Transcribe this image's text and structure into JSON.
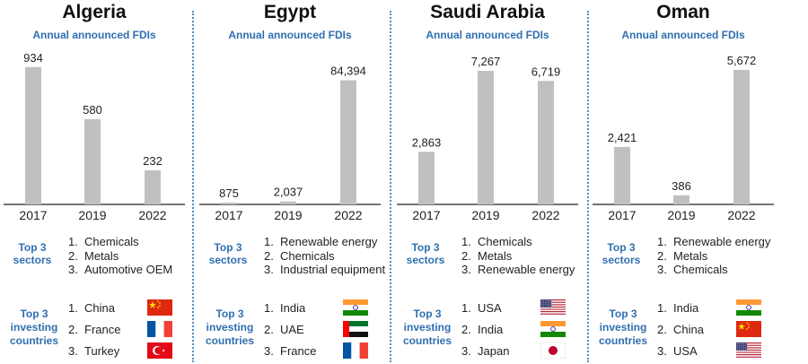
{
  "chart_data": [
    {
      "type": "bar",
      "title": "Algeria",
      "subtitle": "Annual announced FDIs",
      "categories": [
        "2017",
        "2019",
        "2022"
      ],
      "values": [
        934,
        580,
        232
      ],
      "value_labels": [
        "934",
        "580",
        "232"
      ],
      "ylim": [
        0,
        1000
      ],
      "colors": {
        "bar": "#c0c0c0"
      }
    },
    {
      "type": "bar",
      "title": "Egypt",
      "subtitle": "Annual announced FDIs",
      "categories": [
        "2017",
        "2019",
        "2022"
      ],
      "values": [
        875,
        2037,
        84394
      ],
      "value_labels": [
        "875",
        "2,037",
        "84,394"
      ],
      "ylim": [
        0,
        100000
      ],
      "colors": {
        "bar": "#c0c0c0"
      }
    },
    {
      "type": "bar",
      "title": "Saudi Arabia",
      "subtitle": "Annual announced FDIs",
      "categories": [
        "2017",
        "2019",
        "2022"
      ],
      "values": [
        2863,
        7267,
        6719
      ],
      "value_labels": [
        "2,863",
        "7,267",
        "6,719"
      ],
      "ylim": [
        0,
        8000
      ],
      "colors": {
        "bar": "#c0c0c0"
      }
    },
    {
      "type": "bar",
      "title": "Oman",
      "subtitle": "Annual announced FDIs",
      "categories": [
        "2017",
        "2019",
        "2022"
      ],
      "values": [
        2421,
        386,
        5672
      ],
      "value_labels": [
        "2,421",
        "386",
        "5,672"
      ],
      "ylim": [
        0,
        6200
      ],
      "colors": {
        "bar": "#c0c0c0"
      }
    }
  ],
  "labels": {
    "top_sectors": [
      "Top 3",
      "sectors"
    ],
    "top_investing": [
      "Top 3",
      "investing",
      "countries"
    ]
  },
  "panels": [
    {
      "sectors": [
        "Chemicals",
        "Metals",
        "Automotive OEM"
      ],
      "investors": [
        {
          "name": "China",
          "flag": "china-flag-icon"
        },
        {
          "name": "France",
          "flag": "france-flag-icon"
        },
        {
          "name": "Turkey",
          "flag": "turkey-flag-icon"
        }
      ]
    },
    {
      "sectors": [
        "Renewable energy",
        "Chemicals",
        "Industrial equipment"
      ],
      "investors": [
        {
          "name": "India",
          "flag": "india-flag-icon"
        },
        {
          "name": "UAE",
          "flag": "uae-flag-icon"
        },
        {
          "name": "France",
          "flag": "france-flag-icon"
        }
      ]
    },
    {
      "sectors": [
        "Chemicals",
        "Metals",
        "Renewable energy"
      ],
      "investors": [
        {
          "name": "USA",
          "flag": "usa-flag-icon"
        },
        {
          "name": "India",
          "flag": "india-flag-icon"
        },
        {
          "name": "Japan",
          "flag": "japan-flag-icon"
        }
      ]
    },
    {
      "sectors": [
        "Renewable energy",
        "Metals",
        "Chemicals"
      ],
      "investors": [
        {
          "name": "India",
          "flag": "india-flag-icon"
        },
        {
          "name": "China",
          "flag": "china-flag-icon"
        },
        {
          "name": "USA",
          "flag": "usa-flag-icon"
        }
      ]
    }
  ]
}
